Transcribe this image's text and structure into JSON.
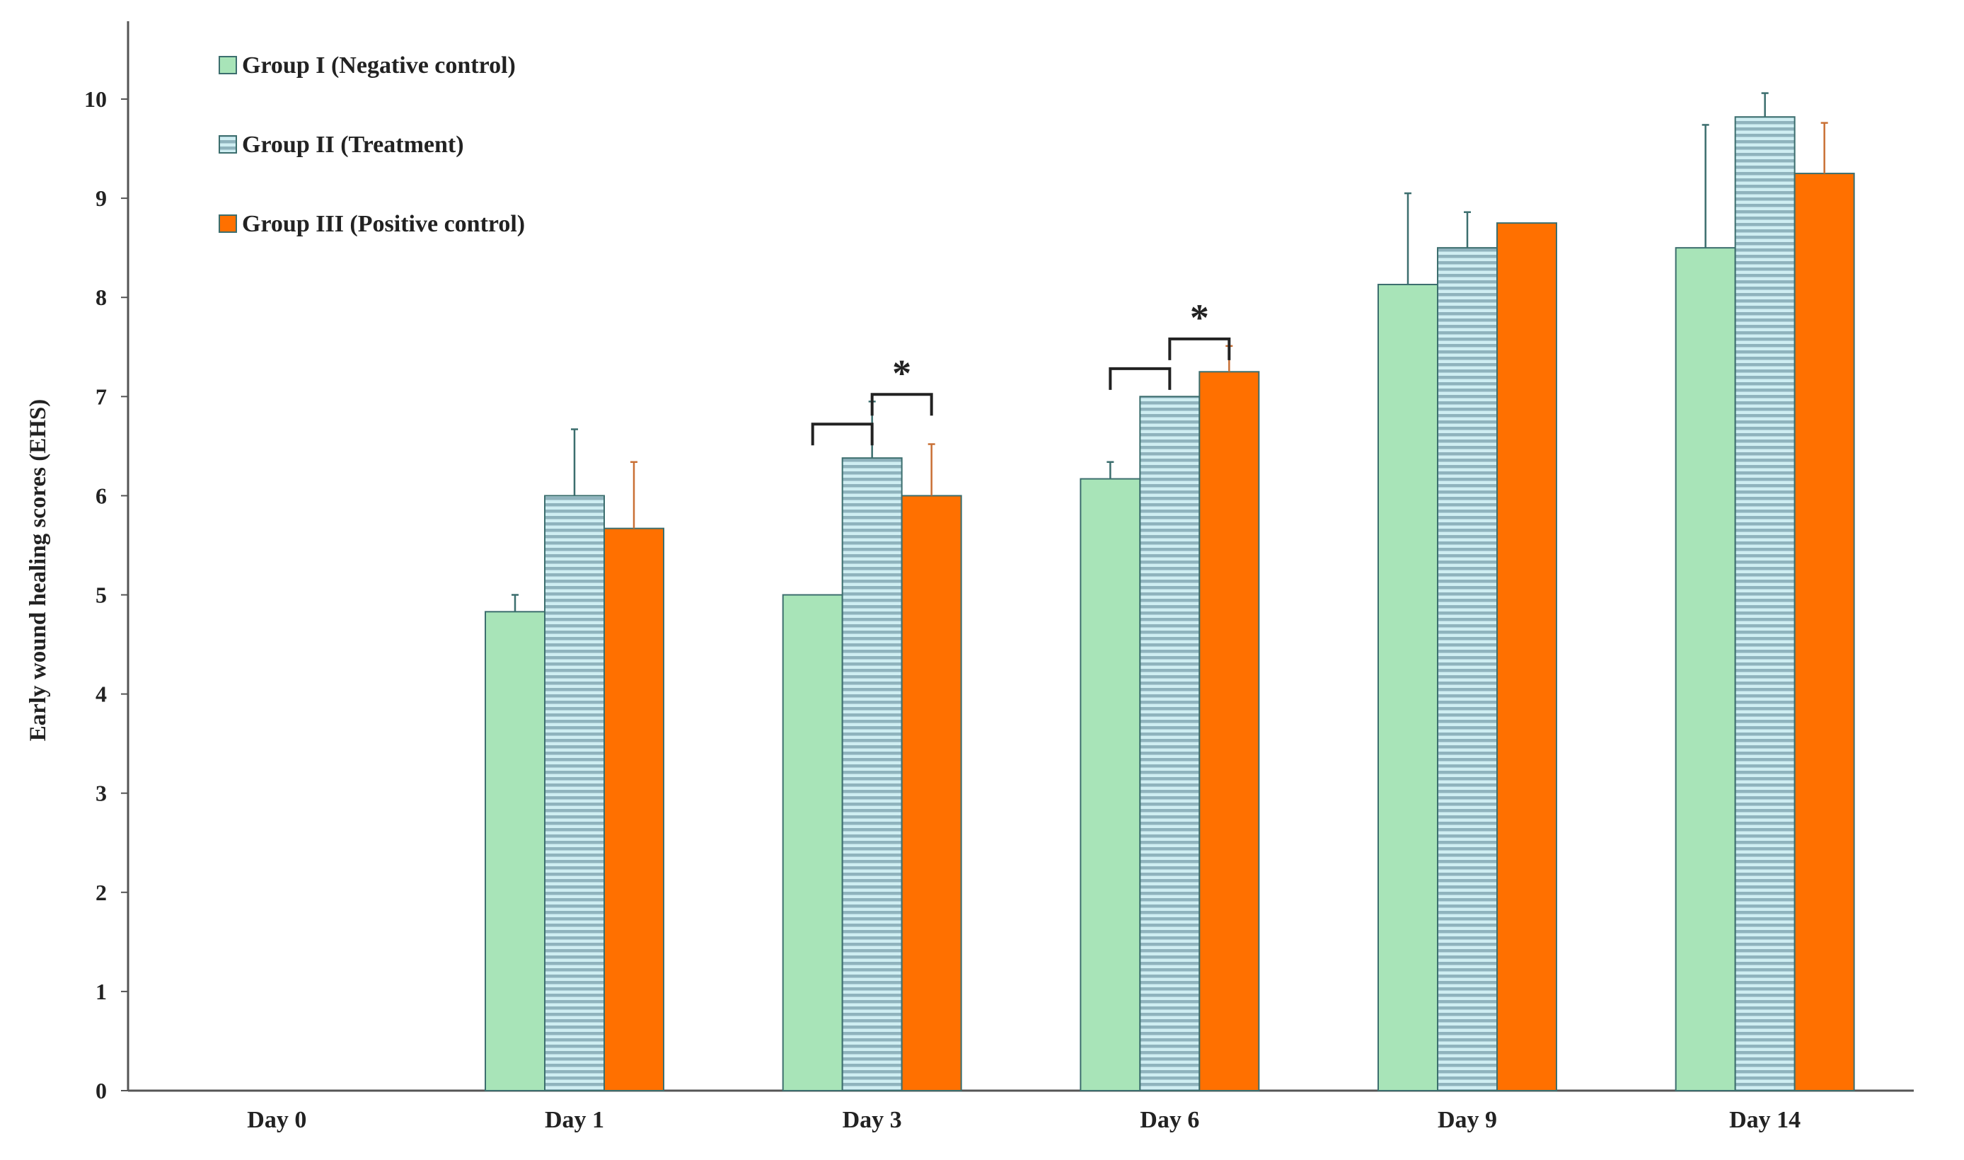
{
  "chart_data": {
    "type": "bar",
    "title": "",
    "xlabel": "",
    "ylabel": "Early wound healing scores (EHS)",
    "ylim": [
      0,
      10.8
    ],
    "yticks": [
      0,
      1,
      2,
      3,
      4,
      5,
      6,
      7,
      8,
      9,
      10
    ],
    "grid": false,
    "legend_position": "top-left",
    "categories": [
      "Day 0",
      "Day 1",
      "Day 3",
      "Day 6",
      "Day 9",
      "Day 14"
    ],
    "series": [
      {
        "name": "Group I (Negative control)",
        "color": "#a8e4b8",
        "pattern": "none",
        "values": [
          0,
          4.83,
          5.0,
          6.17,
          8.13,
          8.5
        ],
        "errors": [
          0,
          0.17,
          0,
          0.17,
          0.92,
          1.24
        ]
      },
      {
        "name": "Group II (Treatment)",
        "color": "#c8e8ec",
        "pattern": "horizontal-stripes",
        "values": [
          0,
          6.0,
          6.38,
          7.0,
          8.5,
          9.82
        ],
        "errors": [
          0,
          0.67,
          0.57,
          0,
          0.36,
          0.24
        ]
      },
      {
        "name": "Group III (Positive control)",
        "color": "#ff7000",
        "pattern": "none",
        "values": [
          0,
          5.67,
          6.0,
          7.25,
          8.75,
          9.25
        ],
        "errors": [
          0,
          0.67,
          0.52,
          0.26,
          0,
          0.51
        ]
      }
    ],
    "annotations": [
      {
        "category": "Day 3",
        "text": "*",
        "left_bracket": "Group I vs Group II",
        "right_bracket": "Group II vs Group III"
      },
      {
        "category": "Day 6",
        "text": "*",
        "left_bracket": "Group I vs Group II",
        "right_bracket": "Group II vs Group III"
      }
    ]
  }
}
